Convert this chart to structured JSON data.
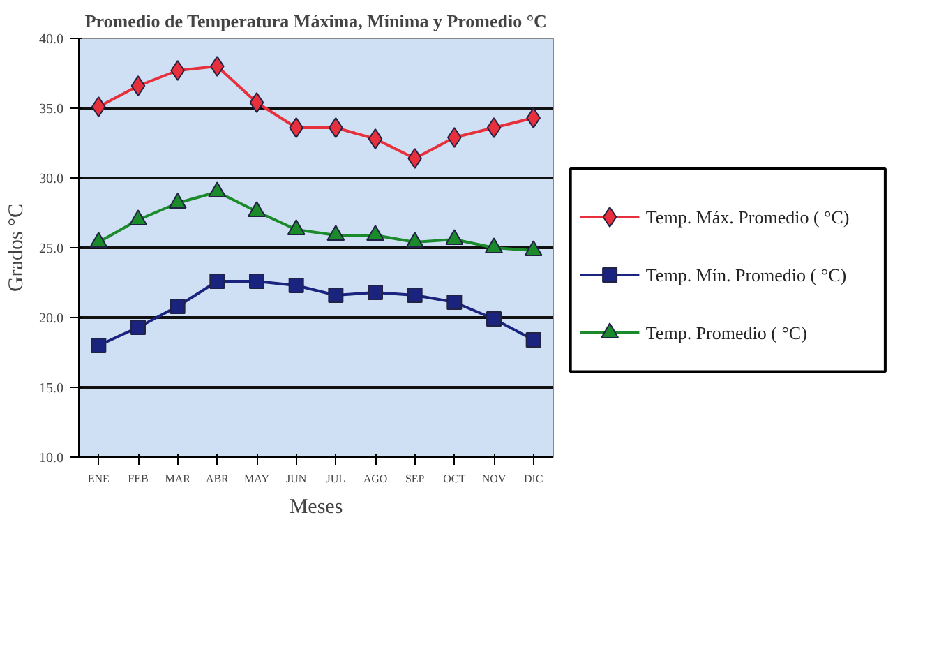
{
  "chart_data": {
    "type": "line",
    "title": "Promedio de Temperatura Máxima, Mínima y Promedio °C",
    "xlabel": "Meses",
    "ylabel": "Grados °C",
    "categories": [
      "ENE",
      "FEB",
      "MAR",
      "ABR",
      "MAY",
      "JUN",
      "JUL",
      "AGO",
      "SEP",
      "OCT",
      "NOV",
      "DIC"
    ],
    "series": [
      {
        "name": "Temp. Máx. Promedio ( °C)",
        "color": "#e8303c",
        "marker": "diamond",
        "values": [
          35.1,
          36.6,
          37.7,
          38.0,
          35.4,
          33.6,
          33.6,
          32.8,
          31.4,
          32.9,
          33.6,
          34.3
        ]
      },
      {
        "name": "Temp. Mín. Promedio ( °C)",
        "color": "#1a237e",
        "marker": "square",
        "values": [
          18.0,
          19.3,
          20.8,
          22.6,
          22.6,
          22.3,
          21.6,
          21.8,
          21.6,
          21.1,
          19.9,
          18.4
        ]
      },
      {
        "name": "Temp. Promedio ( °C)",
        "color": "#1b8a2a",
        "marker": "triangle",
        "values": [
          25.4,
          27.0,
          28.2,
          29.0,
          27.6,
          26.3,
          25.9,
          25.9,
          25.4,
          25.6,
          25.0,
          24.8
        ]
      }
    ],
    "ylim": [
      10.0,
      40.0
    ],
    "yticks": [
      {
        "value": 10,
        "label": "10.0"
      },
      {
        "value": 15,
        "label": "15.0"
      },
      {
        "value": 20,
        "label": "20.0"
      },
      {
        "value": 25,
        "label": "25.0"
      },
      {
        "value": 30,
        "label": "30.0"
      },
      {
        "value": 35,
        "label": "35.0"
      },
      {
        "value": 40,
        "label": "40.0"
      }
    ],
    "grid": "y",
    "legend": "right",
    "line_style": "solid"
  }
}
